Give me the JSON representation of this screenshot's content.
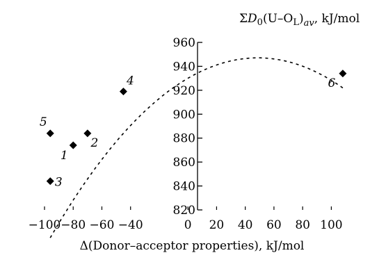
{
  "chart_data": {
    "type": "scatter",
    "xlabel": "Δ(Donor–acceptor properties), kJ/mol",
    "ylabel": {
      "prefix": "Σ",
      "symbol": "D",
      "sub0": "0",
      "inner": "(U–O",
      "subL": "L",
      "close": ")",
      "subav": "av",
      "unit": ", kJ/mol"
    },
    "xlim": [
      -100,
      110
    ],
    "ylim": [
      820,
      960
    ],
    "xticks": [
      -100,
      -80,
      -60,
      -40,
      0,
      20,
      40,
      60,
      80,
      100
    ],
    "xtick_labels": [
      "−100",
      "−80",
      "−60",
      "−40",
      "0",
      "20",
      "40",
      "60",
      "80",
      "100"
    ],
    "yticks": [
      820,
      840,
      860,
      880,
      900,
      920,
      940,
      960
    ],
    "ytick_labels": [
      "820",
      "840",
      "860",
      "880",
      "900",
      "920",
      "940",
      "960"
    ],
    "grid": false,
    "points": [
      {
        "label": "1",
        "x": -80,
        "y": 874
      },
      {
        "label": "2",
        "x": -70,
        "y": 884
      },
      {
        "label": "3",
        "x": -96,
        "y": 844
      },
      {
        "label": "4",
        "x": -45,
        "y": 919
      },
      {
        "label": "5",
        "x": -96,
        "y": 884
      },
      {
        "label": "6",
        "x": 108,
        "y": 934
      }
    ],
    "fit": {
      "style": "dashed",
      "type": "quadratic",
      "coefficients": {
        "a": -0.00717,
        "b": 0.7,
        "c": 930
      },
      "x_range": [
        -96,
        108
      ]
    }
  }
}
